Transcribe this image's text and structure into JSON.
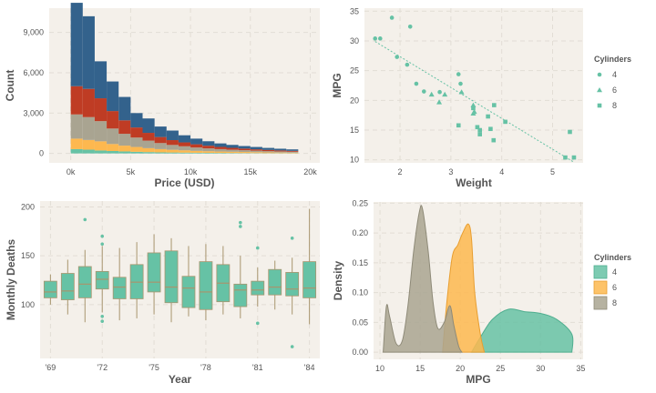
{
  "colors": {
    "panel_bg": "#f4f0ea",
    "grid": "#e2ddd5",
    "teal": "#66c2a5",
    "orange": "#fdb84f",
    "taupe": "#a9a491",
    "red": "#bf3c24",
    "blue": "#33628c",
    "boxline": "#a8956e"
  },
  "chart_data": [
    {
      "type": "stacked-histogram",
      "xlabel": "Price (USD)",
      "ylabel": "Count",
      "xlim": [
        -1800,
        20800
      ],
      "ylim": [
        -700,
        10800
      ],
      "xticks": [
        0,
        5000,
        10000,
        15000,
        20000
      ],
      "xtick_labels": [
        "0k",
        "5k",
        "10k",
        "15k",
        "20k"
      ],
      "yticks": [
        0,
        3000,
        6000,
        9000
      ],
      "ytick_labels": [
        "0",
        "3,000",
        "6,000",
        "9,000"
      ],
      "bins": [
        0,
        1000,
        2000,
        3000,
        4000,
        5000,
        6000,
        7000,
        8000,
        9000,
        10000,
        11000,
        12000,
        13000,
        14000,
        15000,
        16000,
        17000,
        18000,
        19000
      ],
      "bin_width": 1000,
      "series": [
        {
          "name": "teal",
          "values": [
            320,
            280,
            220,
            180,
            150,
            120,
            100,
            80,
            70,
            60,
            50,
            45,
            40,
            35,
            30,
            25,
            20,
            18,
            15
          ]
        },
        {
          "name": "orange",
          "values": [
            780,
            720,
            680,
            520,
            430,
            360,
            290,
            240,
            200,
            170,
            140,
            120,
            100,
            90,
            80,
            70,
            60,
            50,
            40
          ]
        },
        {
          "name": "taupe",
          "values": [
            1800,
            1700,
            1500,
            1150,
            880,
            700,
            560,
            450,
            360,
            300,
            250,
            210,
            180,
            150,
            130,
            110,
            90,
            80,
            70
          ]
        },
        {
          "name": "red",
          "values": [
            2100,
            2100,
            1700,
            1300,
            1000,
            750,
            580,
            450,
            360,
            290,
            240,
            200,
            165,
            140,
            120,
            100,
            90,
            75,
            65
          ]
        },
        {
          "name": "blue",
          "values": [
            6200,
            5400,
            2750,
            2200,
            1740,
            1070,
            1070,
            780,
            710,
            530,
            420,
            330,
            260,
            220,
            190,
            175,
            150,
            127,
            110
          ]
        }
      ]
    },
    {
      "type": "scatter",
      "xlabel": "Weight",
      "ylabel": "MPG",
      "xlim": [
        1.3,
        5.6
      ],
      "ylim": [
        9.5,
        35.5
      ],
      "xticks": [
        2,
        3,
        4,
        5
      ],
      "xtick_labels": [
        "2",
        "3",
        "4",
        "5"
      ],
      "yticks": [
        10,
        15,
        20,
        25,
        30,
        35
      ],
      "ytick_labels": [
        "10",
        "15",
        "20",
        "25",
        "30",
        "35"
      ],
      "legend": {
        "title": "Cylinders",
        "labels": [
          "4",
          "6",
          "8"
        ],
        "position": "right"
      },
      "series": [
        {
          "name": "4",
          "marker": "circle",
          "points": [
            [
              1.51,
              30.4
            ],
            [
              1.61,
              30.4
            ],
            [
              1.84,
              33.9
            ],
            [
              1.94,
              27.3
            ],
            [
              2.14,
              26.0
            ],
            [
              2.2,
              32.4
            ],
            [
              2.32,
              22.8
            ],
            [
              2.47,
              21.5
            ],
            [
              2.78,
              21.4
            ],
            [
              3.15,
              24.4
            ],
            [
              3.19,
              22.8
            ]
          ]
        },
        {
          "name": "6",
          "marker": "triangle",
          "points": [
            [
              2.62,
              21.0
            ],
            [
              2.88,
              21.0
            ],
            [
              2.77,
              19.7
            ],
            [
              3.21,
              21.4
            ],
            [
              3.44,
              19.2
            ],
            [
              3.44,
              17.8
            ],
            [
              3.46,
              18.1
            ]
          ]
        },
        {
          "name": "8",
          "marker": "square",
          "points": [
            [
              3.15,
              15.8
            ],
            [
              3.44,
              18.7
            ],
            [
              3.52,
              15.5
            ],
            [
              3.57,
              14.3
            ],
            [
              3.57,
              15.0
            ],
            [
              3.73,
              17.3
            ],
            [
              3.78,
              15.2
            ],
            [
              3.84,
              13.3
            ],
            [
              3.85,
              19.2
            ],
            [
              4.07,
              16.4
            ],
            [
              5.25,
              10.4
            ],
            [
              5.34,
              14.7
            ],
            [
              5.42,
              10.4
            ]
          ]
        }
      ],
      "trendline": {
        "x": [
          1.51,
          5.42
        ],
        "y": [
          29.9,
          9.6
        ]
      }
    },
    {
      "type": "boxplot",
      "xlabel": "Year",
      "ylabel": "Monthly Deaths",
      "xlim": [
        1968.4,
        1984.6
      ],
      "ylim": [
        45,
        206
      ],
      "xticks": [
        1969,
        1972,
        1975,
        1978,
        1981,
        1984
      ],
      "xtick_labels": [
        "'69",
        "'72",
        "'75",
        "'78",
        "'81",
        "'84"
      ],
      "yticks": [
        100,
        150,
        200
      ],
      "ytick_labels": [
        "100",
        "150",
        "200"
      ],
      "boxes": [
        {
          "year": 1969,
          "q1": 107,
          "median": 113,
          "q3": 124,
          "low": 100,
          "high": 131
        },
        {
          "year": 1970,
          "q1": 105,
          "median": 114,
          "q3": 132,
          "low": 90,
          "high": 146
        },
        {
          "year": 1971,
          "q1": 107,
          "median": 121,
          "q3": 139,
          "low": 82,
          "high": 156
        },
        {
          "year": 1972,
          "q1": 116,
          "median": 126,
          "q3": 134,
          "low": 92,
          "high": 160
        },
        {
          "year": 1973,
          "q1": 106,
          "median": 118,
          "q3": 128,
          "low": 84,
          "high": 158
        },
        {
          "year": 1974,
          "q1": 106,
          "median": 123,
          "q3": 141,
          "low": 86,
          "high": 164
        },
        {
          "year": 1975,
          "q1": 113,
          "median": 123,
          "q3": 153,
          "low": 90,
          "high": 172
        },
        {
          "year": 1976,
          "q1": 102,
          "median": 118,
          "q3": 155,
          "low": 82,
          "high": 168
        },
        {
          "year": 1977,
          "q1": 97,
          "median": 117,
          "q3": 129,
          "low": 88,
          "high": 160
        },
        {
          "year": 1978,
          "q1": 95,
          "median": 113,
          "q3": 144,
          "low": 84,
          "high": 162
        },
        {
          "year": 1979,
          "q1": 103,
          "median": 122,
          "q3": 141,
          "low": 90,
          "high": 160
        },
        {
          "year": 1980,
          "q1": 98,
          "median": 115,
          "q3": 121,
          "low": 86,
          "high": 150
        },
        {
          "year": 1981,
          "q1": 110,
          "median": 115,
          "q3": 124,
          "low": 98,
          "high": 138
        },
        {
          "year": 1982,
          "q1": 110,
          "median": 118,
          "q3": 136,
          "low": 95,
          "high": 145
        },
        {
          "year": 1983,
          "q1": 109,
          "median": 116,
          "q3": 133,
          "low": 90,
          "high": 148
        },
        {
          "year": 1984,
          "q1": 107,
          "median": 117,
          "q3": 144,
          "low": 80,
          "high": 198
        }
      ],
      "outliers": [
        [
          1971,
          187
        ],
        [
          1972,
          170
        ],
        [
          1972,
          162
        ],
        [
          1972,
          88
        ],
        [
          1972,
          83
        ],
        [
          1980,
          184
        ],
        [
          1980,
          180
        ],
        [
          1981,
          158
        ],
        [
          1981,
          81
        ],
        [
          1983,
          168
        ],
        [
          1983,
          57
        ]
      ]
    },
    {
      "type": "area",
      "xlabel": "MPG",
      "ylabel": "Density",
      "xlim": [
        9.2,
        35.3
      ],
      "ylim": [
        -0.012,
        0.252
      ],
      "xticks": [
        10,
        15,
        20,
        25,
        30,
        35
      ],
      "xtick_labels": [
        "10",
        "15",
        "20",
        "25",
        "30",
        "35"
      ],
      "yticks": [
        0,
        0.05,
        0.1,
        0.15,
        0.2,
        0.25
      ],
      "ytick_labels": [
        "0.00",
        "0.05",
        "0.10",
        "0.15",
        "0.20",
        "0.25"
      ],
      "legend": {
        "title": "Cylinders",
        "labels": [
          "4",
          "6",
          "8"
        ],
        "position": "right"
      },
      "series": [
        {
          "name": "4",
          "points": [
            [
              21.4,
              0
            ],
            [
              22.5,
              0.025
            ],
            [
              24,
              0.055
            ],
            [
              26,
              0.072
            ],
            [
              28,
              0.068
            ],
            [
              30,
              0.065
            ],
            [
              32,
              0.055
            ],
            [
              33.9,
              0.03
            ],
            [
              33.9,
              0
            ]
          ]
        },
        {
          "name": "6",
          "points": [
            [
              17.8,
              0
            ],
            [
              18.3,
              0.08
            ],
            [
              19,
              0.16
            ],
            [
              19.7,
              0.18
            ],
            [
              20.3,
              0.2
            ],
            [
              21,
              0.215
            ],
            [
              21.4,
              0.19
            ],
            [
              21.8,
              0.1
            ],
            [
              22.5,
              0.03
            ],
            [
              23,
              0
            ]
          ]
        },
        {
          "name": "8",
          "points": [
            [
              10.4,
              0
            ],
            [
              10.8,
              0.077
            ],
            [
              11.2,
              0.06
            ],
            [
              12,
              0.015
            ],
            [
              12.8,
              0.02
            ],
            [
              13.5,
              0.08
            ],
            [
              14.2,
              0.17
            ],
            [
              14.9,
              0.235
            ],
            [
              15.3,
              0.24
            ],
            [
              16,
              0.17
            ],
            [
              16.6,
              0.085
            ],
            [
              17.2,
              0.04
            ],
            [
              18,
              0.05
            ],
            [
              18.7,
              0.078
            ],
            [
              19.2,
              0.045
            ],
            [
              19.8,
              0.01
            ],
            [
              20.2,
              0
            ]
          ]
        }
      ]
    }
  ]
}
